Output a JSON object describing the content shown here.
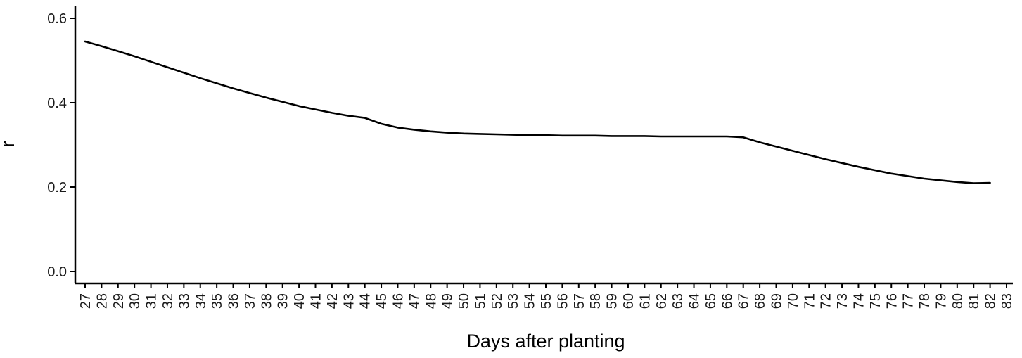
{
  "chart_data": {
    "type": "line",
    "xlabel": "Days after planting",
    "ylabel": "r",
    "categories": [
      "27",
      "28",
      "29",
      "30",
      "31",
      "32",
      "33",
      "34",
      "35",
      "36",
      "37",
      "38",
      "39",
      "40",
      "41",
      "42",
      "43",
      "44",
      "45",
      "46",
      "47",
      "48",
      "49",
      "50",
      "51",
      "52",
      "53",
      "54",
      "55",
      "56",
      "57",
      "58",
      "59",
      "60",
      "61",
      "62",
      "63",
      "64",
      "65",
      "66",
      "67",
      "68",
      "69",
      "70",
      "71",
      "72",
      "73",
      "74",
      "75",
      "76",
      "77",
      "78",
      "79",
      "80",
      "81",
      "82",
      "83"
    ],
    "ylim": [
      0,
      0.62
    ],
    "yticks": [
      "0.0",
      "0.2",
      "0.4",
      "0.6"
    ],
    "ytick_values": [
      0.0,
      0.2,
      0.4,
      0.6
    ],
    "grid": false,
    "series": [
      {
        "values": [
          0.545,
          0.534,
          0.522,
          0.51,
          0.497,
          0.484,
          0.471,
          0.458,
          0.446,
          0.434,
          0.423,
          0.412,
          0.402,
          0.392,
          0.384,
          0.376,
          0.369,
          0.364,
          0.35,
          0.341,
          0.336,
          0.332,
          0.329,
          0.327,
          0.326,
          0.325,
          0.324,
          0.323,
          0.323,
          0.322,
          0.322,
          0.322,
          0.321,
          0.321,
          0.321,
          0.32,
          0.32,
          0.32,
          0.32,
          0.32,
          0.318,
          0.306,
          0.296,
          0.286,
          0.276,
          0.266,
          0.257,
          0.248,
          0.24,
          0.232,
          0.226,
          0.22,
          0.216,
          0.212,
          0.209,
          0.21,
          null
        ]
      }
    ]
  }
}
